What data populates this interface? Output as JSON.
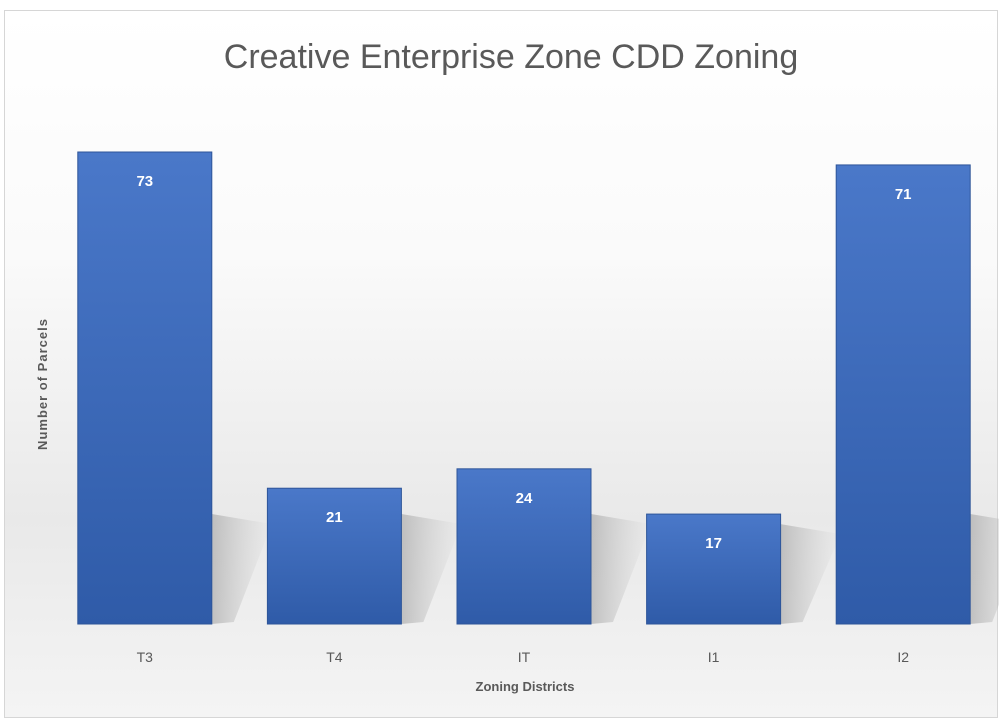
{
  "chart_data": {
    "type": "bar",
    "title": "Creative Enterprise Zone CDD Zoning",
    "xlabel": "Zoning Districts",
    "ylabel": "Number of Parcels",
    "categories": [
      "T3",
      "T4",
      "IT",
      "I1",
      "I2"
    ],
    "values": [
      73,
      21,
      24,
      17,
      71
    ],
    "data_labels": [
      "73",
      "21",
      "24",
      "17",
      "71"
    ],
    "ylim": [
      0,
      73
    ],
    "grid": false,
    "legend": "none",
    "bar_color": "#4472c4",
    "data_label_position": "inside-top"
  }
}
